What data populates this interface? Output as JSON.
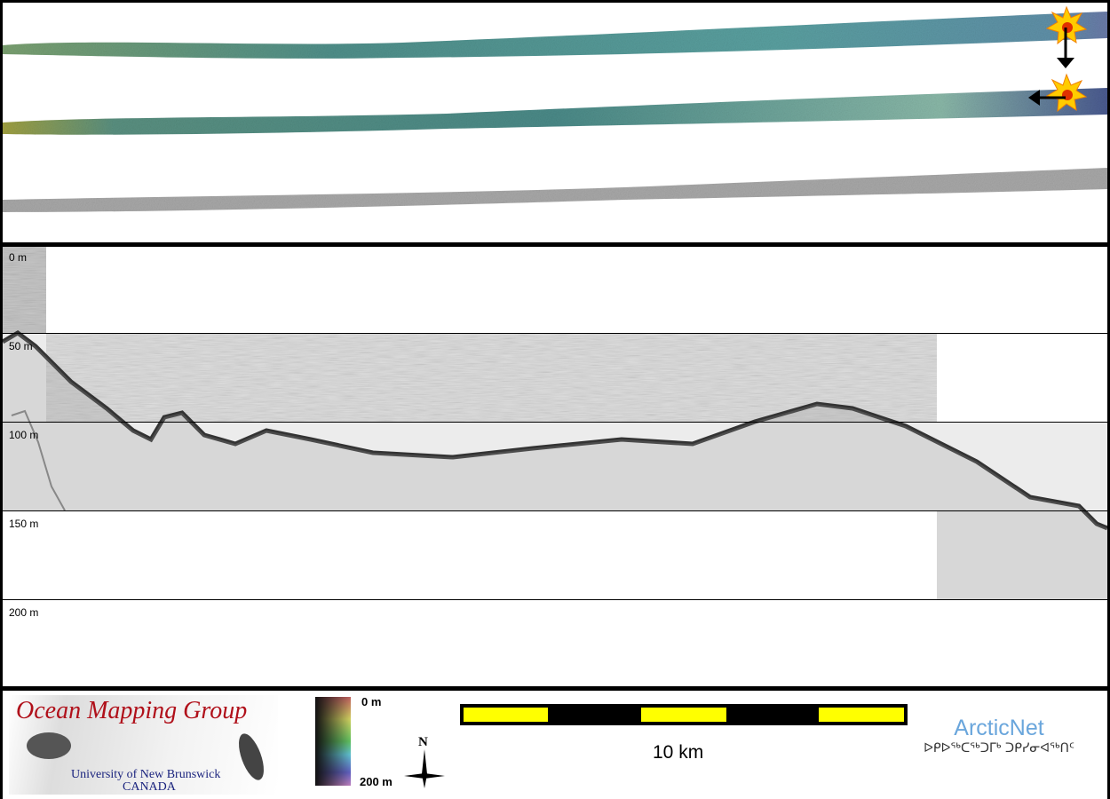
{
  "depth_labels": [
    "0 m",
    "50 m",
    "100 m",
    "150 m",
    "200 m"
  ],
  "legend": {
    "top": "0 m",
    "bottom": "200 m",
    "north": "N"
  },
  "scale_bar": {
    "label": "10 km",
    "colors": [
      "#ffff00",
      "#000000"
    ]
  },
  "logos": {
    "omg_title": "Ocean Mapping Group",
    "omg_line1": "University of New Brunswick",
    "omg_line2": "CANADA",
    "arcticnet": "ArcticNet",
    "arcticnet_syllabics": "ᐅᑭᐅᖅᑕᖅᑐᒥᒃ ᑐᑭᓯᓂᐊᖅᑎᑦ"
  },
  "colors": {
    "omg_red": "#b0101a",
    "unb_blue": "#1a237e",
    "arcticnet_blue": "#6aa6dc"
  }
}
